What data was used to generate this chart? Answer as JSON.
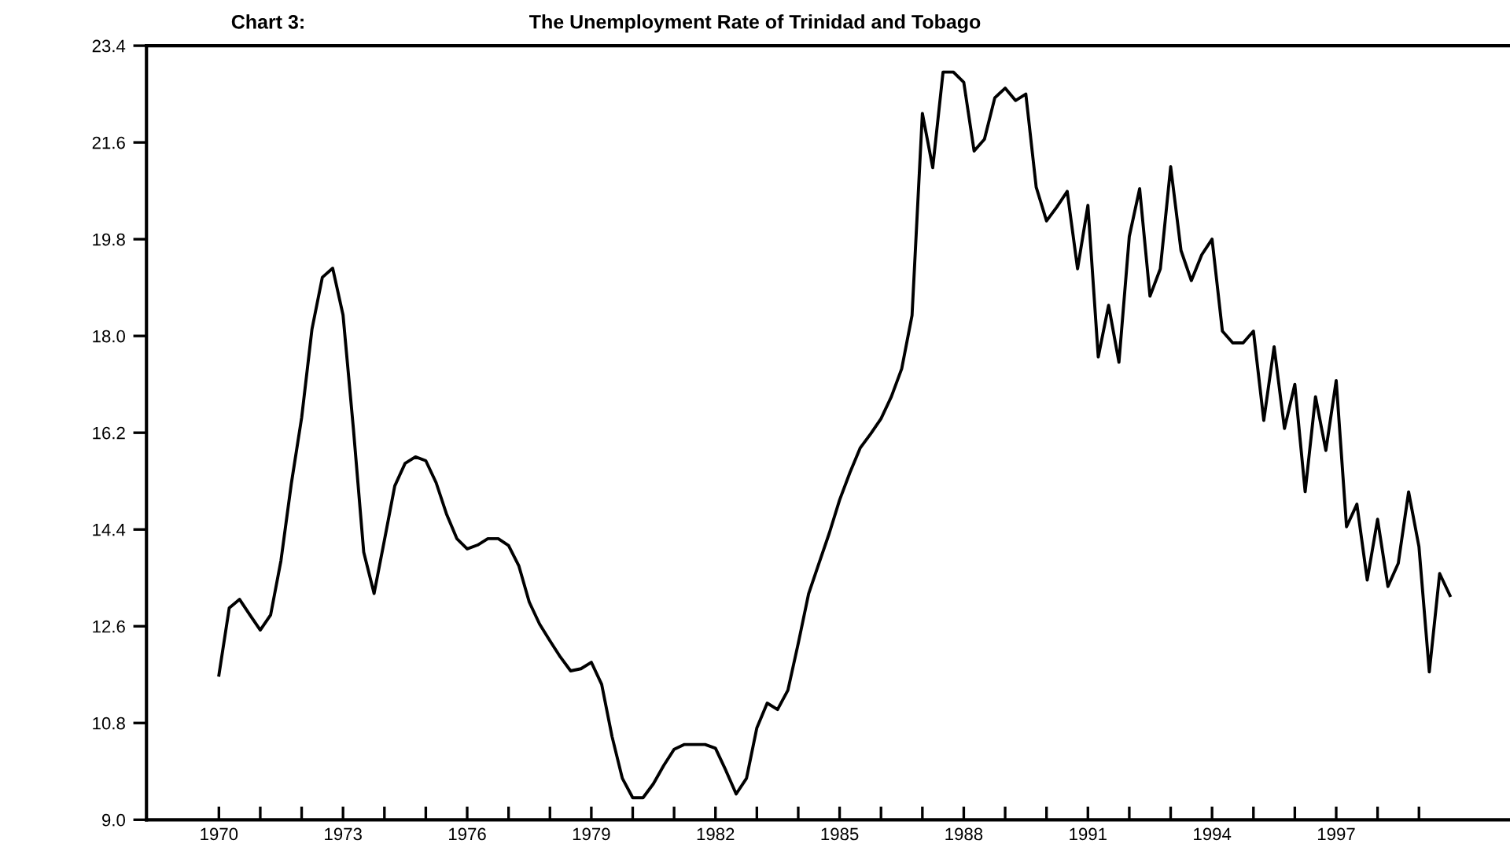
{
  "chart_data": {
    "type": "line",
    "title": "The Unemployment Rate of Trinidad and Tobago",
    "annotations": [
      "Chart 3:"
    ],
    "x": [
      1970.0,
      1970.25,
      1970.5,
      1970.75,
      1971.0,
      1971.25,
      1971.5,
      1971.75,
      1972.0,
      1972.25,
      1972.5,
      1972.75,
      1973.0,
      1973.25,
      1973.5,
      1973.75,
      1974.0,
      1974.25,
      1974.5,
      1974.75,
      1975.0,
      1975.25,
      1975.5,
      1975.75,
      1976.0,
      1976.25,
      1976.5,
      1976.75,
      1977.0,
      1977.25,
      1977.5,
      1977.75,
      1978.0,
      1978.25,
      1978.5,
      1978.75,
      1979.0,
      1979.25,
      1979.5,
      1979.75,
      1980.0,
      1980.25,
      1980.5,
      1980.75,
      1981.0,
      1981.25,
      1981.5,
      1981.75,
      1982.0,
      1982.25,
      1982.5,
      1982.75,
      1983.0,
      1983.25,
      1983.5,
      1983.75,
      1984.0,
      1984.25,
      1984.5,
      1984.75,
      1985.0,
      1985.25,
      1985.5,
      1985.75,
      1986.0,
      1986.25,
      1986.5,
      1986.75,
      1987.0,
      1987.25,
      1987.5,
      1987.75,
      1988.0,
      1988.25,
      1988.5,
      1988.75,
      1989.0,
      1989.25,
      1989.5,
      1989.75,
      1990.0,
      1990.25,
      1990.5,
      1990.75,
      1991.0,
      1991.25,
      1991.5,
      1991.75,
      1992.0,
      1992.25,
      1992.5,
      1992.75,
      1993.0,
      1993.25,
      1993.5,
      1993.75,
      1994.0,
      1994.25,
      1994.5,
      1994.75,
      1995.0,
      1995.25,
      1995.5,
      1995.75,
      1996.0,
      1996.25,
      1996.5,
      1996.75,
      1997.0,
      1997.25,
      1997.5,
      1997.75,
      1998.0,
      1998.25,
      1998.5,
      1998.75,
      1999.0,
      1999.25,
      1999.5,
      1999.75
    ],
    "series": [
      {
        "color": "#000000",
        "values": [
          11.69,
          12.94,
          13.1,
          12.81,
          12.53,
          12.81,
          13.82,
          15.25,
          16.48,
          18.13,
          19.09,
          19.26,
          18.39,
          16.28,
          13.98,
          13.21,
          14.2,
          15.21,
          15.63,
          15.75,
          15.68,
          15.27,
          14.69,
          14.23,
          14.04,
          14.11,
          14.23,
          14.23,
          14.1,
          13.72,
          13.05,
          12.64,
          12.33,
          12.03,
          11.77,
          11.81,
          11.93,
          11.52,
          10.55,
          9.77,
          9.41,
          9.41,
          9.67,
          10.01,
          10.31,
          10.4,
          10.4,
          10.4,
          10.33,
          9.92,
          9.48,
          9.77,
          10.71,
          11.17,
          11.05,
          11.41,
          12.28,
          13.2,
          13.77,
          14.33,
          14.95,
          15.46,
          15.92,
          16.18,
          16.46,
          16.87,
          17.39,
          18.38,
          22.14,
          21.13,
          22.91,
          22.91,
          22.72,
          21.44,
          21.66,
          22.43,
          22.61,
          22.38,
          22.5,
          20.77,
          20.14,
          20.4,
          20.69,
          19.25,
          20.43,
          17.61,
          18.57,
          17.51,
          19.85,
          20.74,
          18.74,
          19.25,
          21.15,
          19.59,
          19.03,
          19.51,
          19.8,
          18.09,
          17.87,
          17.87,
          18.09,
          16.43,
          17.8,
          16.28,
          17.1,
          15.1,
          16.87,
          15.87,
          17.17,
          14.45,
          14.87,
          13.46,
          14.59,
          13.34,
          13.77,
          15.1,
          14.08,
          11.75,
          13.58,
          13.17
        ]
      }
    ],
    "xlim": [
      1968.25,
      2001.2
    ],
    "xticks": [
      1970,
      {
        "value": 1971,
        "label": null
      },
      {
        "value": 1972,
        "label": null
      },
      1973,
      {
        "value": 1974,
        "label": null
      },
      {
        "value": 1975,
        "label": null
      },
      1976,
      {
        "value": 1977,
        "label": null
      },
      {
        "value": 1978,
        "label": null
      },
      1979,
      {
        "value": 1980,
        "label": null
      },
      {
        "value": 1981,
        "label": null
      },
      1982,
      {
        "value": 1983,
        "label": null
      },
      {
        "value": 1984,
        "label": null
      },
      1985,
      {
        "value": 1986,
        "label": null
      },
      {
        "value": 1987,
        "label": null
      },
      1988,
      {
        "value": 1989,
        "label": null
      },
      {
        "value": 1990,
        "label": null
      },
      1991,
      {
        "value": 1992,
        "label": null
      },
      {
        "value": 1993,
        "label": null
      },
      1994,
      {
        "value": 1995,
        "label": null
      },
      {
        "value": 1996,
        "label": null
      },
      1997,
      {
        "value": 1998,
        "label": null
      },
      {
        "value": 1999,
        "label": null
      }
    ],
    "ylim": [
      9.0,
      23.4
    ],
    "yticks": [
      {
        "value": 9.0,
        "label": "9.0"
      },
      {
        "value": 10.8,
        "label": "10.8"
      },
      {
        "value": 12.6,
        "label": "12.6"
      },
      {
        "value": 14.4,
        "label": "14.4"
      },
      {
        "value": 16.2,
        "label": "16.2"
      },
      {
        "value": 18.0,
        "label": "18.0"
      },
      {
        "value": 19.8,
        "label": "19.8"
      },
      {
        "value": 21.6,
        "label": "21.6"
      },
      {
        "value": 23.4,
        "label": "23.4"
      }
    ],
    "grid": false,
    "marker": "none",
    "line_style": "solid"
  }
}
